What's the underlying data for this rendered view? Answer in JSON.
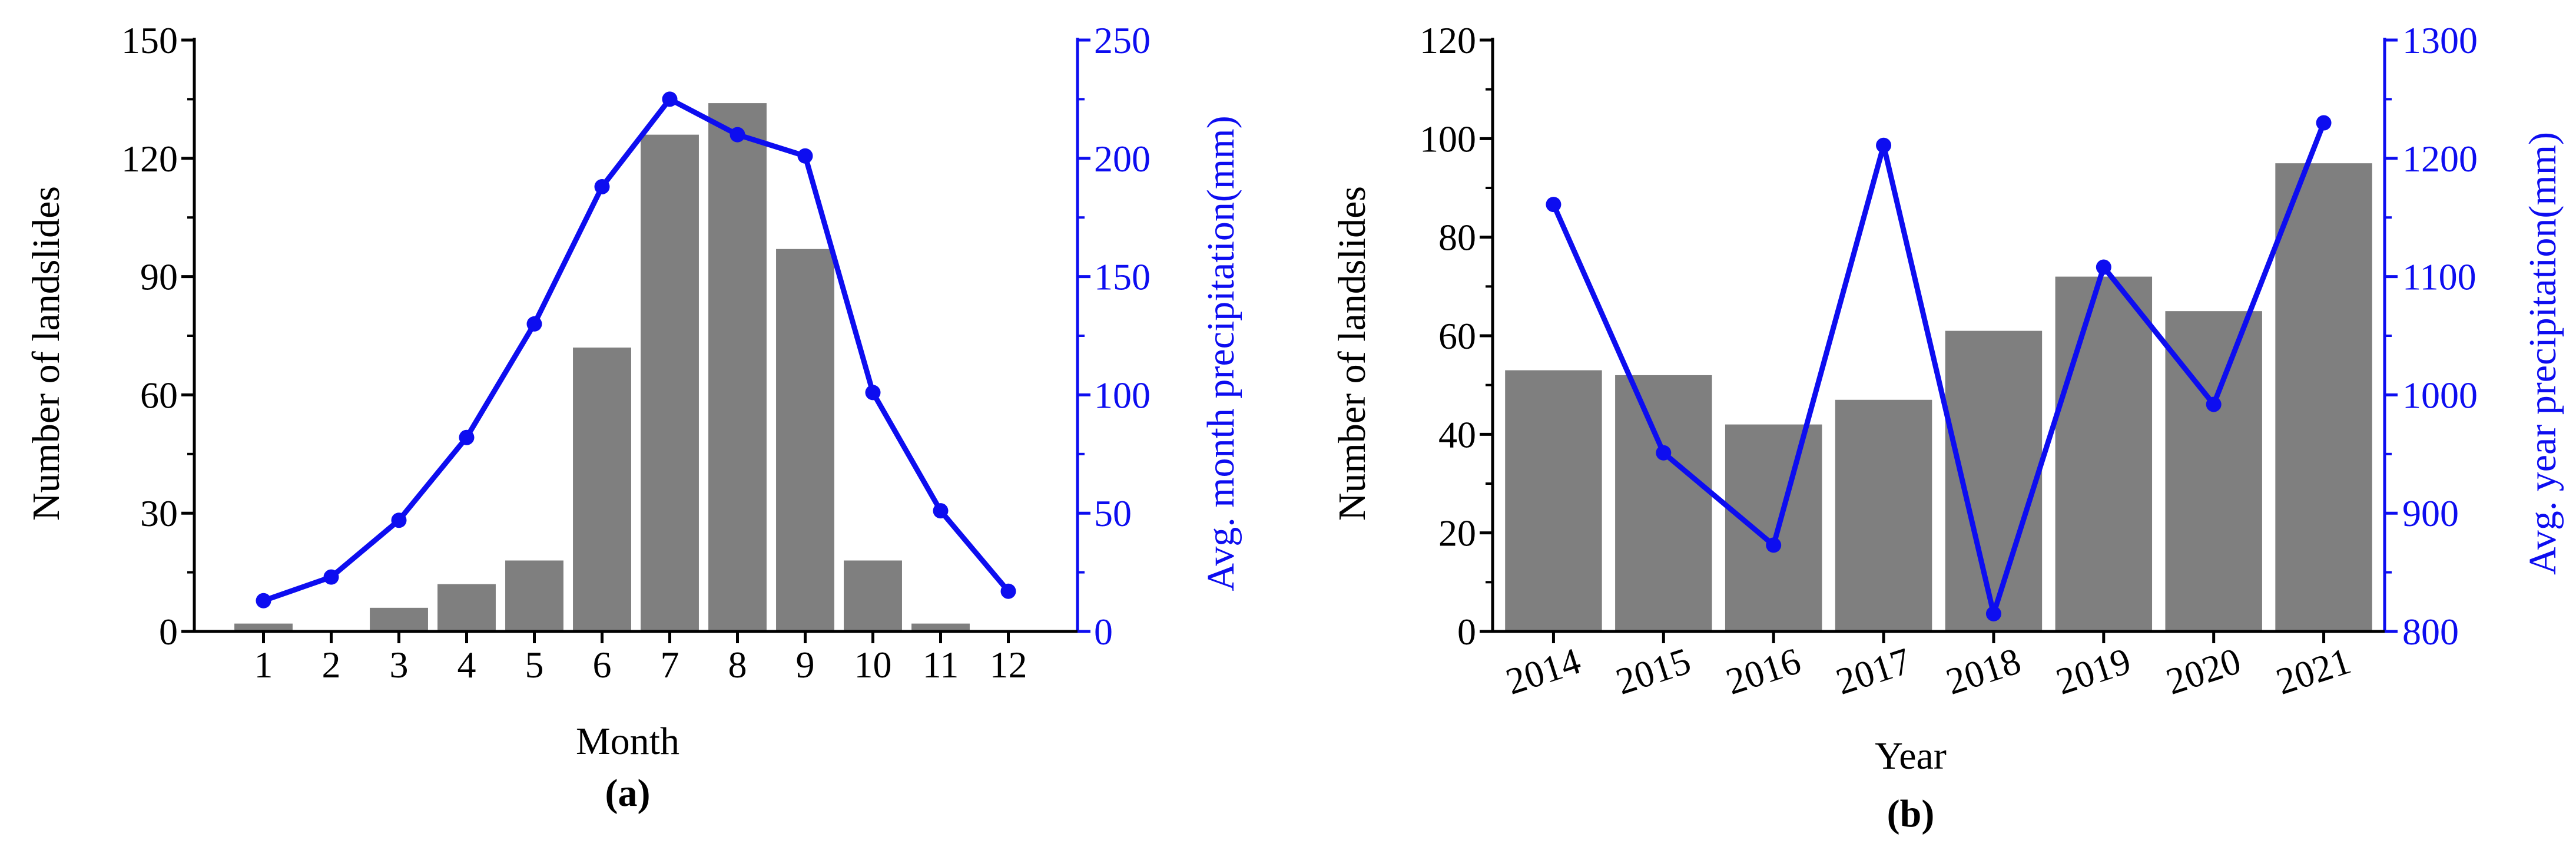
{
  "colors": {
    "bar": "#7f7f7f",
    "line": "#0d0df0",
    "axis": "#000000"
  },
  "chart_data": [
    {
      "id": "a",
      "type": "bar+line",
      "panel_label": "(a)",
      "xlabel": "Month",
      "ylabel": "Number of landslides",
      "y2label": "Avg. month precipitation(mm)",
      "categories": [
        "1",
        "2",
        "3",
        "4",
        "5",
        "6",
        "7",
        "8",
        "9",
        "10",
        "11",
        "12"
      ],
      "bar_series": {
        "name": "",
        "values": [
          2,
          0,
          6,
          12,
          18,
          72,
          126,
          134,
          97,
          18,
          2,
          0
        ]
      },
      "line_series": {
        "name": "",
        "values": [
          13,
          23,
          47,
          82,
          130,
          188,
          225,
          210,
          201,
          101,
          51,
          17
        ]
      },
      "ylim": [
        0,
        150
      ],
      "yticks": [
        "0",
        "30",
        "60",
        "90",
        "120",
        "150"
      ],
      "y2lim": [
        0,
        250
      ],
      "y2ticks": [
        "0",
        "50",
        "100",
        "150",
        "200",
        "250"
      ]
    },
    {
      "id": "b",
      "type": "bar+line",
      "panel_label": "(b)",
      "xlabel": "Year",
      "ylabel": "Number of landslides",
      "y2label": "Avg. year precipitation(mm)",
      "categories": [
        "2014",
        "2015",
        "2016",
        "2017",
        "2018",
        "2019",
        "2020",
        "2021"
      ],
      "bar_series": {
        "name": "",
        "values": [
          53,
          52,
          42,
          47,
          61,
          72,
          65,
          95
        ]
      },
      "line_series": {
        "name": "",
        "values": [
          1161,
          951,
          873,
          1211,
          815,
          1108,
          992,
          1230
        ]
      },
      "ylim": [
        0,
        120
      ],
      "yticks": [
        "0",
        "20",
        "40",
        "60",
        "80",
        "100",
        "120"
      ],
      "y2lim": [
        800,
        1300
      ],
      "y2ticks": [
        "800",
        "900",
        "1000",
        "1100",
        "1200",
        "1300"
      ]
    }
  ]
}
